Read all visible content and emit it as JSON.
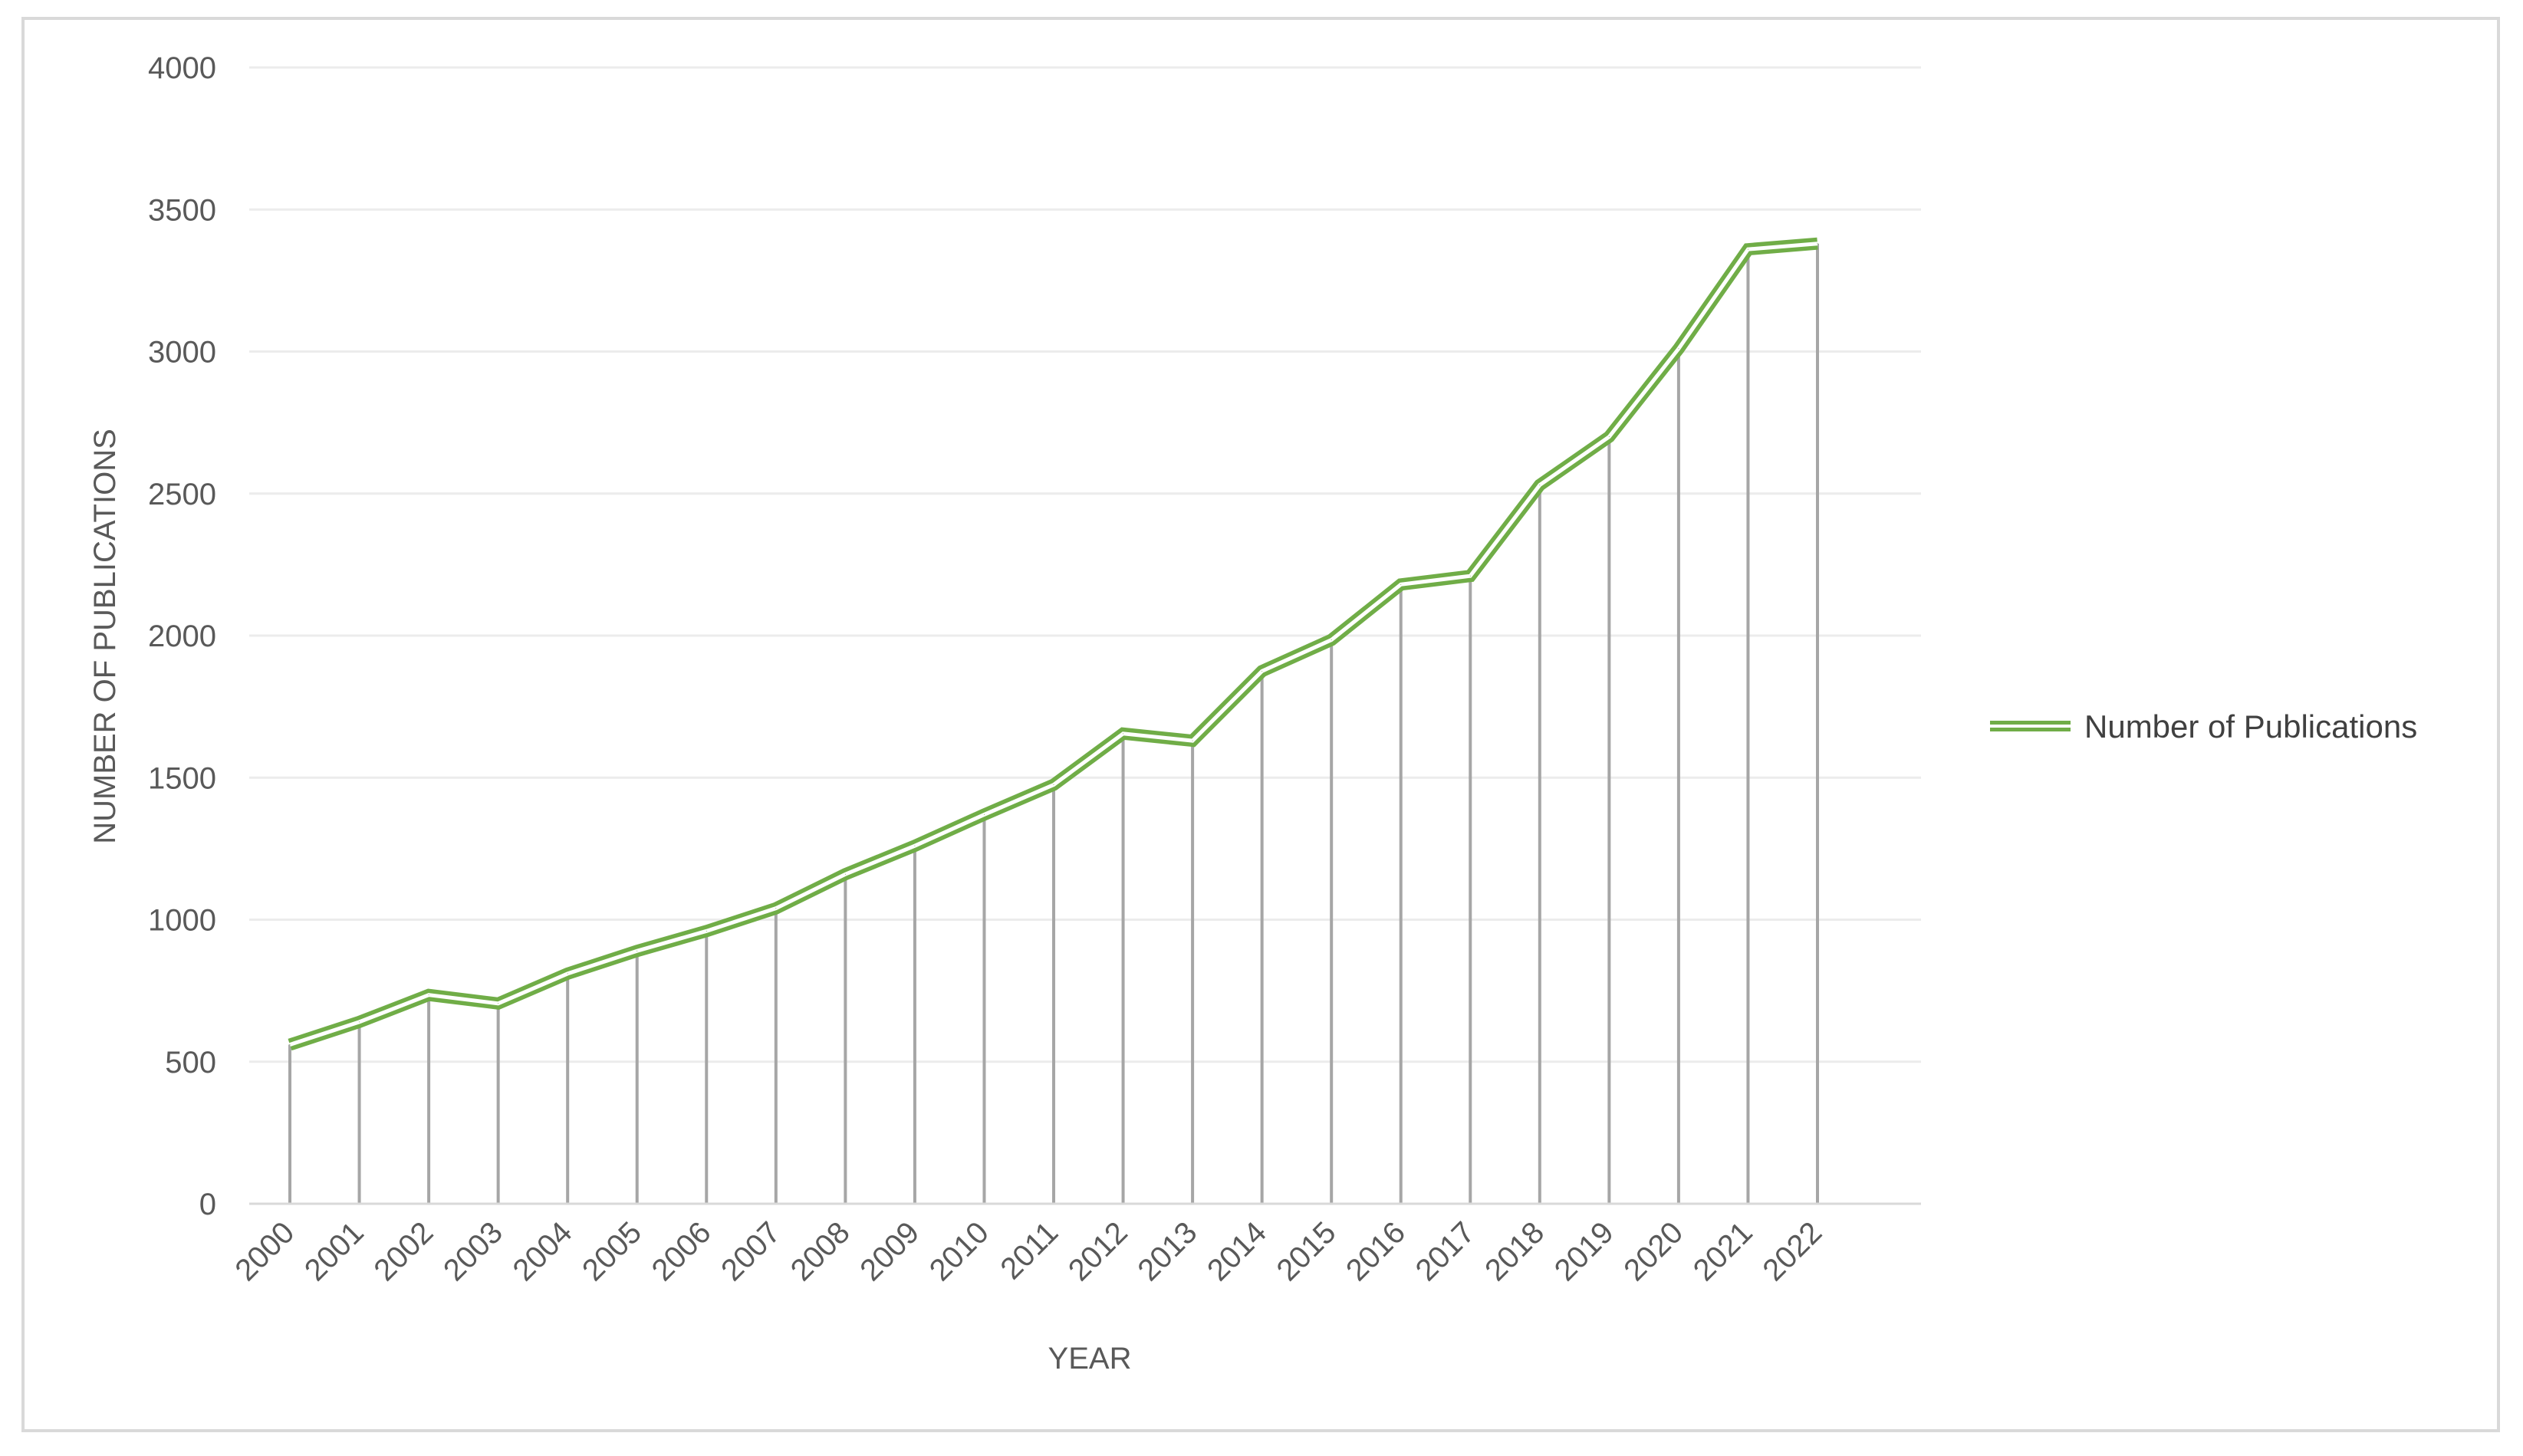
{
  "chart_data": {
    "type": "line",
    "xlabel": "YEAR",
    "ylabel": "NUMBER OF PUBLICATIONS",
    "ylim": [
      0,
      4000
    ],
    "y_ticks": [
      "0",
      "500",
      "1000",
      "1500",
      "2000",
      "2500",
      "3000",
      "3500",
      "4000"
    ],
    "grid": true,
    "drop_lines": true,
    "legend_position": "right",
    "categories": [
      "2000",
      "2001",
      "2002",
      "2003",
      "2004",
      "2005",
      "2006",
      "2007",
      "2008",
      "2009",
      "2010",
      "2011",
      "2012",
      "2013",
      "2014",
      "2015",
      "2016",
      "2017",
      "2018",
      "2019",
      "2020",
      "2021",
      "2022"
    ],
    "series": [
      {
        "name": "Number of Publications",
        "color": "#70ad47",
        "values": [
          560,
          640,
          735,
          705,
          810,
          890,
          960,
          1040,
          1160,
          1260,
          1370,
          1475,
          1655,
          1630,
          1875,
          1985,
          2180,
          2210,
          2530,
          2700,
          3010,
          3360,
          3380
        ]
      }
    ]
  }
}
